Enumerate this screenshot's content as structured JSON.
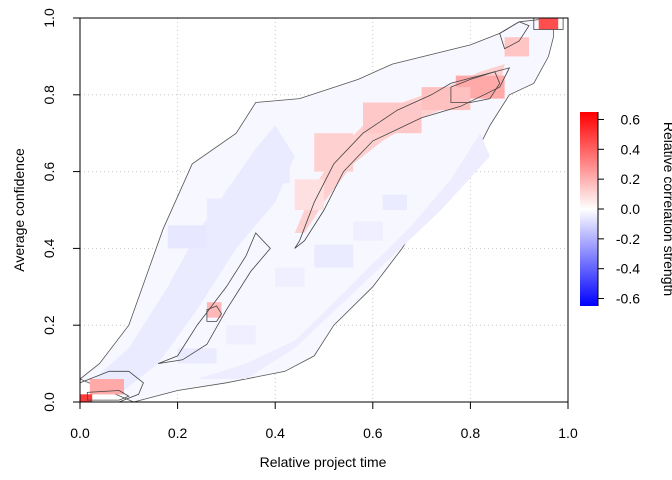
{
  "chart_data": {
    "type": "heatmap",
    "xlabel": "Relative project time",
    "ylabel": "Average confidence",
    "xlim": [
      0.0,
      1.0
    ],
    "ylim": [
      0.0,
      1.0
    ],
    "x_ticks": [
      "0.0",
      "0.2",
      "0.4",
      "0.6",
      "0.8",
      "1.0"
    ],
    "y_ticks": [
      "0.0",
      "0.2",
      "0.4",
      "0.6",
      "0.8",
      "1.0"
    ],
    "grid": true,
    "colorbar": {
      "label": "Relative correlation strength",
      "range": [
        -0.65,
        0.65
      ],
      "ticks": [
        "0.6",
        "0.4",
        "0.2",
        "0.0",
        "-0.2",
        "-0.4",
        "-0.6"
      ],
      "colors": [
        "#0000ff",
        "#ffffff",
        "#ff0000"
      ]
    },
    "band_region": {
      "description_values": "diagonal band of near-zero correlation",
      "upper_boundary": [
        [
          0.0,
          0.06
        ],
        [
          0.04,
          0.1
        ],
        [
          0.1,
          0.2
        ],
        [
          0.17,
          0.45
        ],
        [
          0.23,
          0.62
        ],
        [
          0.32,
          0.7
        ],
        [
          0.36,
          0.78
        ],
        [
          0.45,
          0.79
        ],
        [
          0.57,
          0.84
        ],
        [
          0.64,
          0.88
        ],
        [
          0.8,
          0.93
        ],
        [
          0.86,
          0.96
        ],
        [
          0.9,
          0.99
        ],
        [
          0.97,
          1.0
        ]
      ],
      "lower_boundary": [
        [
          0.11,
          0.0
        ],
        [
          0.2,
          0.03
        ],
        [
          0.3,
          0.05
        ],
        [
          0.42,
          0.08
        ],
        [
          0.48,
          0.12
        ],
        [
          0.52,
          0.2
        ],
        [
          0.6,
          0.3
        ],
        [
          0.66,
          0.4
        ],
        [
          0.7,
          0.48
        ],
        [
          0.8,
          0.62
        ],
        [
          0.84,
          0.72
        ],
        [
          0.88,
          0.8
        ],
        [
          0.93,
          0.83
        ],
        [
          0.96,
          0.9
        ],
        [
          0.97,
          0.95
        ]
      ]
    },
    "cells": [
      {
        "x": 0.18,
        "y": 0.4,
        "w": 0.08,
        "h": 0.06,
        "value": -0.06
      },
      {
        "x": 0.26,
        "y": 0.48,
        "w": 0.06,
        "h": 0.05,
        "value": -0.05
      },
      {
        "x": 0.38,
        "y": 0.57,
        "w": 0.05,
        "h": 0.04,
        "value": -0.05
      },
      {
        "x": 0.4,
        "y": 0.3,
        "w": 0.06,
        "h": 0.05,
        "value": -0.04
      },
      {
        "x": 0.48,
        "y": 0.35,
        "w": 0.08,
        "h": 0.06,
        "value": -0.05
      },
      {
        "x": 0.56,
        "y": 0.42,
        "w": 0.06,
        "h": 0.05,
        "value": -0.04
      },
      {
        "x": 0.62,
        "y": 0.5,
        "w": 0.05,
        "h": 0.04,
        "value": -0.05
      },
      {
        "x": 0.2,
        "y": 0.1,
        "w": 0.08,
        "h": 0.04,
        "value": -0.05
      },
      {
        "x": 0.3,
        "y": 0.15,
        "w": 0.06,
        "h": 0.05,
        "value": -0.04
      },
      {
        "x": 0.02,
        "y": 0.02,
        "w": 0.07,
        "h": 0.04,
        "value": 0.22
      },
      {
        "x": 0.0,
        "y": 0.0,
        "w": 0.025,
        "h": 0.02,
        "value": 0.5
      },
      {
        "x": 0.94,
        "y": 0.97,
        "w": 0.04,
        "h": 0.03,
        "value": 0.45
      },
      {
        "x": 0.77,
        "y": 0.79,
        "w": 0.1,
        "h": 0.06,
        "value": 0.22
      },
      {
        "x": 0.48,
        "y": 0.6,
        "w": 0.08,
        "h": 0.1,
        "value": 0.12
      },
      {
        "x": 0.58,
        "y": 0.7,
        "w": 0.12,
        "h": 0.08,
        "value": 0.14
      },
      {
        "x": 0.7,
        "y": 0.76,
        "w": 0.1,
        "h": 0.06,
        "value": 0.16
      },
      {
        "x": 0.44,
        "y": 0.5,
        "w": 0.06,
        "h": 0.08,
        "value": 0.08
      },
      {
        "x": 0.87,
        "y": 0.9,
        "w": 0.05,
        "h": 0.05,
        "value": 0.15
      },
      {
        "x": 0.26,
        "y": 0.22,
        "w": 0.03,
        "h": 0.04,
        "value": 0.18
      }
    ],
    "red_band": [
      [
        0.44,
        0.44
      ],
      [
        0.48,
        0.56
      ],
      [
        0.52,
        0.64
      ],
      [
        0.58,
        0.72
      ],
      [
        0.66,
        0.78
      ],
      [
        0.75,
        0.82
      ],
      [
        0.82,
        0.86
      ],
      [
        0.87,
        0.88
      ],
      [
        0.86,
        0.82
      ],
      [
        0.78,
        0.78
      ],
      [
        0.7,
        0.74
      ],
      [
        0.62,
        0.68
      ],
      [
        0.56,
        0.62
      ],
      [
        0.5,
        0.52
      ],
      [
        0.46,
        0.44
      ]
    ],
    "blue_band": [
      [
        0.02,
        0.05
      ],
      [
        0.1,
        0.14
      ],
      [
        0.18,
        0.3
      ],
      [
        0.24,
        0.44
      ],
      [
        0.3,
        0.55
      ],
      [
        0.36,
        0.66
      ],
      [
        0.4,
        0.72
      ],
      [
        0.44,
        0.64
      ],
      [
        0.4,
        0.52
      ],
      [
        0.32,
        0.4
      ],
      [
        0.24,
        0.24
      ],
      [
        0.16,
        0.1
      ],
      [
        0.08,
        0.02
      ]
    ],
    "blue_band_lower": [
      [
        0.24,
        0.06
      ],
      [
        0.34,
        0.1
      ],
      [
        0.44,
        0.16
      ],
      [
        0.52,
        0.26
      ],
      [
        0.6,
        0.36
      ],
      [
        0.68,
        0.46
      ],
      [
        0.76,
        0.58
      ],
      [
        0.82,
        0.7
      ],
      [
        0.84,
        0.64
      ],
      [
        0.74,
        0.5
      ],
      [
        0.64,
        0.38
      ],
      [
        0.54,
        0.26
      ],
      [
        0.44,
        0.14
      ],
      [
        0.34,
        0.06
      ]
    ],
    "contours": [
      [
        [
          0.0,
          0.0
        ],
        [
          0.0,
          0.05
        ],
        [
          0.06,
          0.08
        ],
        [
          0.1,
          0.08
        ],
        [
          0.13,
          0.05
        ],
        [
          0.12,
          0.02
        ],
        [
          0.08,
          0.0
        ]
      ],
      [
        [
          0.015,
          0.005
        ],
        [
          0.015,
          0.025
        ],
        [
          0.08,
          0.03
        ],
        [
          0.1,
          0.015
        ],
        [
          0.08,
          0.005
        ]
      ],
      [
        [
          0.93,
          0.97
        ],
        [
          0.93,
          1.0
        ],
        [
          0.99,
          1.0
        ],
        [
          0.99,
          0.97
        ]
      ],
      [
        [
          0.76,
          0.78
        ],
        [
          0.76,
          0.82
        ],
        [
          0.8,
          0.84
        ],
        [
          0.85,
          0.86
        ],
        [
          0.86,
          0.83
        ],
        [
          0.84,
          0.79
        ],
        [
          0.8,
          0.78
        ]
      ],
      [
        [
          0.26,
          0.21
        ],
        [
          0.26,
          0.24
        ],
        [
          0.28,
          0.25
        ],
        [
          0.29,
          0.23
        ],
        [
          0.28,
          0.21
        ]
      ],
      [
        [
          0.45,
          0.42
        ],
        [
          0.48,
          0.52
        ],
        [
          0.52,
          0.62
        ],
        [
          0.58,
          0.7
        ],
        [
          0.65,
          0.76
        ],
        [
          0.72,
          0.8
        ],
        [
          0.76,
          0.83
        ],
        [
          0.88,
          0.87
        ],
        [
          0.86,
          0.82
        ],
        [
          0.78,
          0.77
        ],
        [
          0.7,
          0.74
        ],
        [
          0.6,
          0.68
        ],
        [
          0.54,
          0.6
        ],
        [
          0.5,
          0.5
        ],
        [
          0.46,
          0.42
        ],
        [
          0.44,
          0.4
        ]
      ],
      [
        [
          0.16,
          0.1
        ],
        [
          0.2,
          0.12
        ],
        [
          0.24,
          0.2
        ],
        [
          0.3,
          0.3
        ],
        [
          0.34,
          0.38
        ],
        [
          0.36,
          0.44
        ],
        [
          0.39,
          0.4
        ],
        [
          0.35,
          0.34
        ],
        [
          0.3,
          0.24
        ],
        [
          0.26,
          0.15
        ],
        [
          0.21,
          0.11
        ]
      ],
      [
        [
          0.87,
          0.92
        ],
        [
          0.86,
          0.96
        ],
        [
          0.9,
          0.99
        ],
        [
          0.92,
          0.98
        ],
        [
          0.9,
          0.94
        ]
      ]
    ]
  }
}
